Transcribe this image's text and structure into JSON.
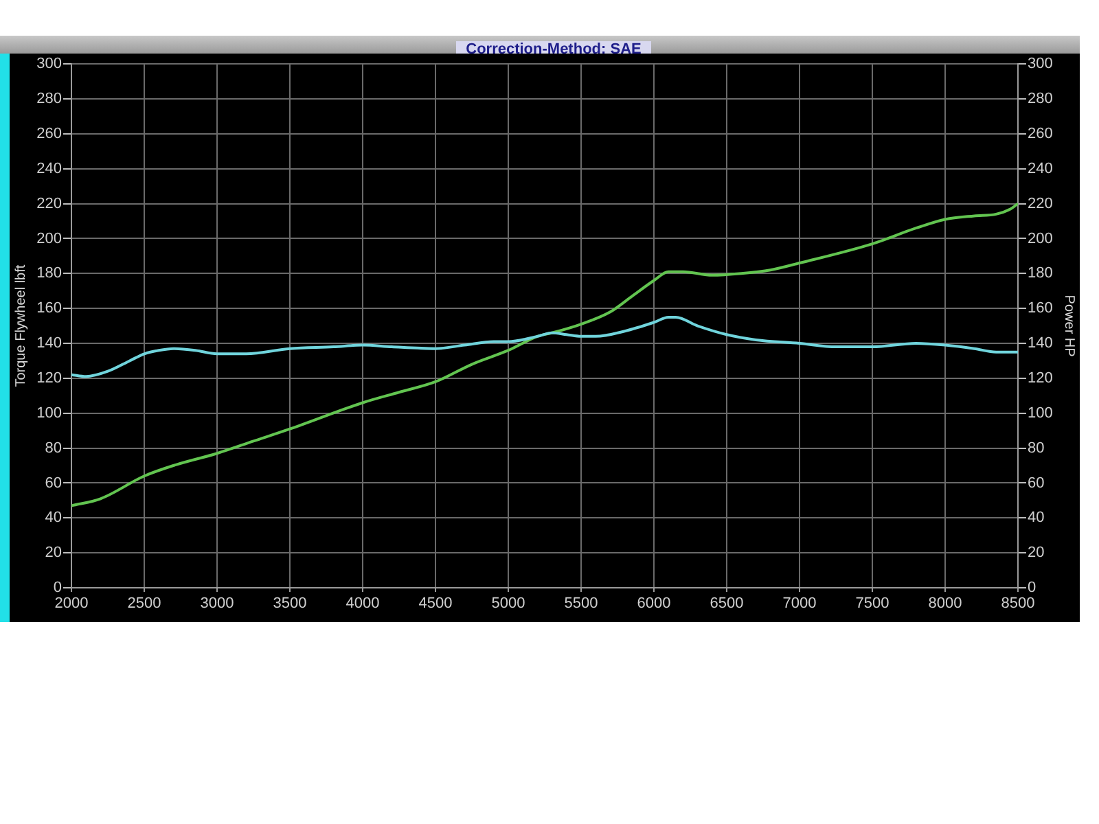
{
  "chart_data": {
    "type": "line",
    "title": "Correction-Method: SAE",
    "ylabel": "Torque Flywheel lbft",
    "y2label": "Power HP",
    "xlim": [
      2000,
      8500
    ],
    "xticks": [
      2000,
      2500,
      3000,
      3500,
      4000,
      4500,
      5000,
      5500,
      6000,
      6500,
      7000,
      7500,
      8000,
      8500
    ],
    "ylim": [
      0,
      300
    ],
    "yticks": [
      0,
      20,
      40,
      60,
      80,
      100,
      120,
      140,
      160,
      180,
      200,
      220,
      240,
      260,
      280,
      300
    ],
    "y2lim": [
      0,
      300
    ],
    "y2ticks": [
      0,
      20,
      40,
      60,
      80,
      100,
      120,
      140,
      160,
      180,
      200,
      220,
      240,
      260,
      280,
      300
    ],
    "grid": true,
    "series": [
      {
        "color": "#70d4dc",
        "x": [
          2000,
          2100,
          2250,
          2400,
          2500,
          2600,
          2700,
          2850,
          3000,
          3200,
          3500,
          3800,
          4000,
          4200,
          4500,
          4700,
          4900,
          5000,
          5200,
          5300,
          5400,
          5500,
          5600,
          5800,
          6000,
          6100,
          6150,
          6300,
          6500,
          6700,
          7000,
          7250,
          7500,
          7800,
          8000,
          8200,
          8350,
          8500
        ],
        "values": [
          122,
          121,
          124,
          130,
          134,
          136,
          137,
          136,
          134,
          134,
          137,
          138,
          139,
          138,
          137,
          139,
          141,
          141,
          144,
          146,
          145,
          144,
          144,
          147,
          152,
          155,
          155,
          150,
          145,
          142,
          140,
          138,
          138,
          140,
          139,
          137,
          135,
          135
        ]
      },
      {
        "color": "#62c450",
        "axis": "y2",
        "x": [
          2000,
          2200,
          2500,
          2700,
          3000,
          3250,
          3500,
          4000,
          4250,
          4500,
          4750,
          5000,
          5200,
          5300,
          5500,
          5700,
          5850,
          6000,
          6100,
          6200,
          6400,
          6600,
          6800,
          7000,
          7500,
          7800,
          8000,
          8200,
          8350,
          8450,
          8500
        ],
        "values": [
          47,
          51,
          64,
          70,
          77,
          84,
          91,
          106,
          112,
          118,
          128,
          136,
          144,
          146,
          151,
          158,
          167,
          176,
          181,
          181,
          179,
          180,
          182,
          186,
          197,
          206,
          211,
          213,
          214,
          217,
          220
        ]
      }
    ]
  }
}
